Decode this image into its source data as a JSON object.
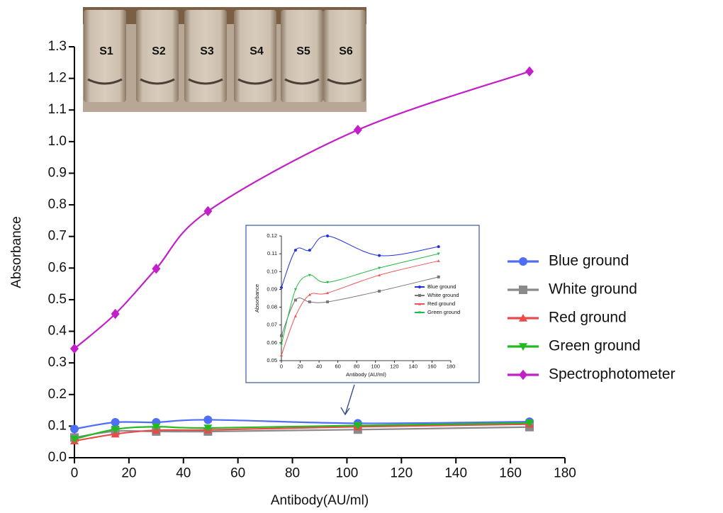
{
  "chart_data": [
    {
      "type": "line",
      "x_label": "Antibody(AU/ml)",
      "y_label": "Absorbance",
      "x": [
        0,
        15,
        30,
        49,
        104,
        167
      ],
      "xlim": [
        0,
        180
      ],
      "xticks": [
        0,
        20,
        40,
        60,
        80,
        100,
        120,
        140,
        160,
        180
      ],
      "ylim": [
        0,
        1.3
      ],
      "yticks": [
        {
          "value": 0,
          "label": "0.0"
        },
        0.1,
        0.2,
        0.3,
        0.4,
        0.5,
        0.6,
        0.7,
        0.8,
        0.9,
        {
          "value": 1,
          "label": "1.0"
        },
        1.1,
        1.2,
        1.3
      ],
      "legend": "right",
      "series": [
        {
          "name": "Blue ground",
          "color": "#4f6ef7",
          "marker": "circle",
          "values": [
            0.091,
            0.112,
            0.112,
            0.12,
            0.109,
            0.114
          ]
        },
        {
          "name": "White ground",
          "color": "#8a8a8a",
          "marker": "square",
          "values": [
            0.064,
            0.084,
            0.083,
            0.083,
            0.089,
            0.097
          ]
        },
        {
          "name": "Red ground",
          "color": "#ea4a4a",
          "marker": "triangle",
          "values": [
            0.053,
            0.075,
            0.087,
            0.088,
            0.098,
            0.106
          ]
        },
        {
          "name": "Green ground",
          "color": "#22bb22",
          "marker": "triangle-down",
          "values": [
            0.059,
            0.09,
            0.098,
            0.094,
            0.102,
            0.11
          ]
        },
        {
          "name": "Spectrophotometer",
          "color": "#c21fc9",
          "marker": "diamond",
          "values": [
            0.345,
            0.455,
            0.598,
            0.78,
            1.037,
            1.222
          ]
        }
      ]
    },
    {
      "type": "line",
      "x_label": "Antibody (AU/ml)",
      "y_label": "Absorbance",
      "x": [
        0,
        15,
        30,
        49,
        104,
        167
      ],
      "xlim": [
        0,
        180
      ],
      "xticks": [
        0,
        20,
        40,
        60,
        80,
        100,
        120,
        140,
        160,
        180
      ],
      "ylim": [
        0.05,
        0.12
      ],
      "yticks": [
        0.05,
        0.06,
        0.07,
        0.08,
        0.09,
        {
          "value": 0.1,
          "label": "0.10"
        },
        0.11,
        0.12
      ],
      "legend": "inside",
      "series": [
        {
          "name": "Blue ground",
          "color": "#2233dd",
          "marker": "circle",
          "values": [
            0.091,
            0.112,
            0.112,
            0.12,
            0.109,
            0.114
          ]
        },
        {
          "name": "White ground",
          "color": "#777777",
          "marker": "square",
          "values": [
            0.064,
            0.084,
            0.083,
            0.083,
            0.089,
            0.097
          ]
        },
        {
          "name": "Red ground",
          "color": "#ee5555",
          "marker": "triangle",
          "values": [
            0.053,
            0.075,
            0.087,
            0.088,
            0.098,
            0.106
          ]
        },
        {
          "name": "Green ground",
          "color": "#22bb44",
          "marker": "triangle-down",
          "values": [
            0.059,
            0.09,
            0.098,
            0.094,
            0.102,
            0.11
          ]
        }
      ]
    }
  ],
  "photo": {
    "labels": [
      "S1",
      "S2",
      "S3",
      "S4",
      "S5",
      "S6"
    ]
  }
}
